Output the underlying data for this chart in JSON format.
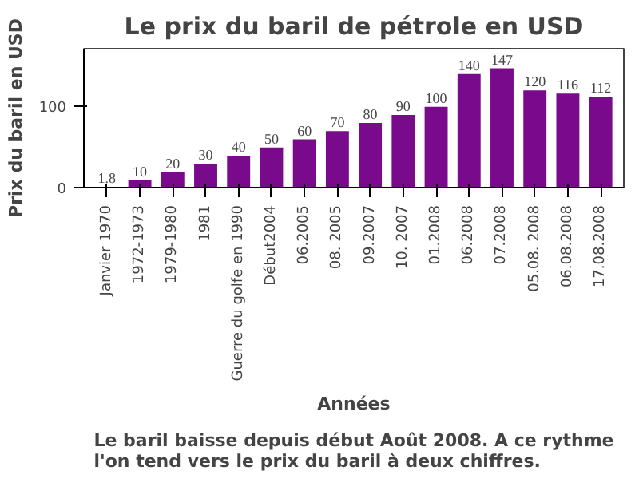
{
  "chart_data": {
    "type": "bar",
    "title": "Le prix du baril de pétrole en USD",
    "xlabel": "Années",
    "ylabel": "Prix du baril en USD",
    "categories": [
      "Janvier 1970",
      "1972-1973",
      "1979-1980",
      "1981",
      "Guerre du golfe en 1990",
      "Début2004",
      "06.2005",
      "08. 2005",
      "09.2007",
      "10. 2007",
      "01.2008",
      "06.2008",
      "07.2008",
      "05.08. 2008",
      "06.08.2008",
      "17.08.2008"
    ],
    "values": [
      1.8,
      10,
      20,
      30,
      40,
      50,
      60,
      70,
      80,
      90,
      100,
      140,
      147,
      120,
      116,
      112
    ],
    "color": "#7a0a8c",
    "data_labels": true,
    "ylim": [
      0,
      170
    ],
    "yticks": [
      0,
      100
    ],
    "grid": false,
    "annotations": [
      "Le baril baisse depuis début Août 2008. A ce rythme l'on tend vers le prix du baril à deux chiffres."
    ]
  }
}
